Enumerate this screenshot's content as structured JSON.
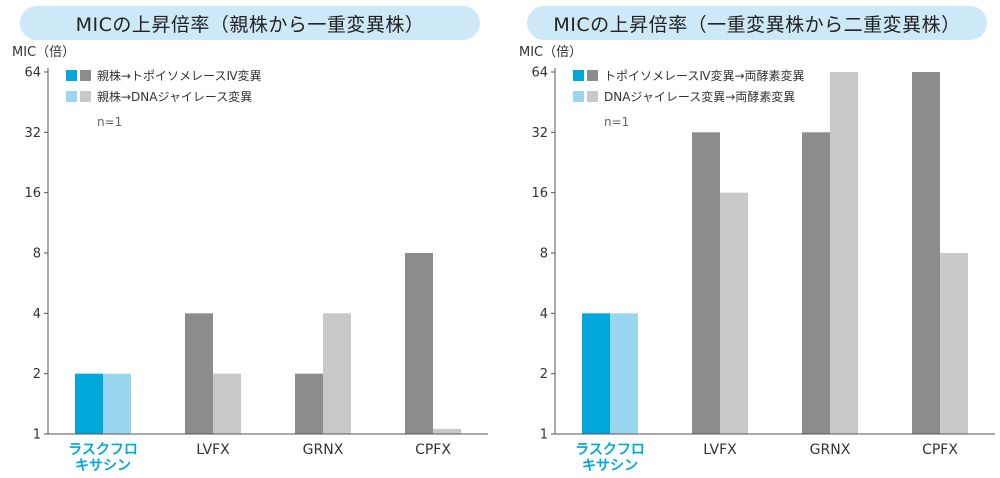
{
  "chart_data": [
    {
      "type": "bar",
      "title": "MICの上昇倍率（親株から一重変異株）",
      "ylabel": "MIC（倍）",
      "yscale": "log2",
      "ylim": [
        1,
        64
      ],
      "yticks": [
        "1",
        "2",
        "4",
        "8",
        "16",
        "32",
        "64"
      ],
      "categories": [
        "ラスクフロ\nキサシン",
        "LVFX",
        "GRNX",
        "CPFX"
      ],
      "highlight_category": 0,
      "series": [
        {
          "name": "親株→トポイソメレースⅣ変異",
          "values": [
            2,
            4,
            2,
            8
          ],
          "color": "#8c8c8c",
          "highlight_color": "#00a7db"
        },
        {
          "name": "親株→DNAジャイレース変異",
          "values": [
            2,
            2,
            4,
            1.06
          ],
          "color": "#c8c8c8",
          "highlight_color": "#9ad6f0"
        }
      ],
      "note": "n=1",
      "legend": "top-left"
    },
    {
      "type": "bar",
      "title": "MICの上昇倍率（一重変異株から二重変異株）",
      "ylabel": "MIC（倍）",
      "yscale": "log2",
      "ylim": [
        1,
        64
      ],
      "yticks": [
        "1",
        "2",
        "4",
        "8",
        "16",
        "32",
        "64"
      ],
      "categories": [
        "ラスクフロ\nキサシン",
        "LVFX",
        "GRNX",
        "CPFX"
      ],
      "highlight_category": 0,
      "series": [
        {
          "name": "トポイソメレースⅣ変異→両酵素変異",
          "values": [
            4,
            32,
            32,
            64
          ],
          "color": "#8c8c8c",
          "highlight_color": "#00a7db"
        },
        {
          "name": "DNAジャイレース変異→両酵素変異",
          "values": [
            4,
            16,
            64,
            8
          ],
          "color": "#c8c8c8",
          "highlight_color": "#9ad6f0"
        }
      ],
      "note": "n=1",
      "legend": "top-left"
    }
  ]
}
